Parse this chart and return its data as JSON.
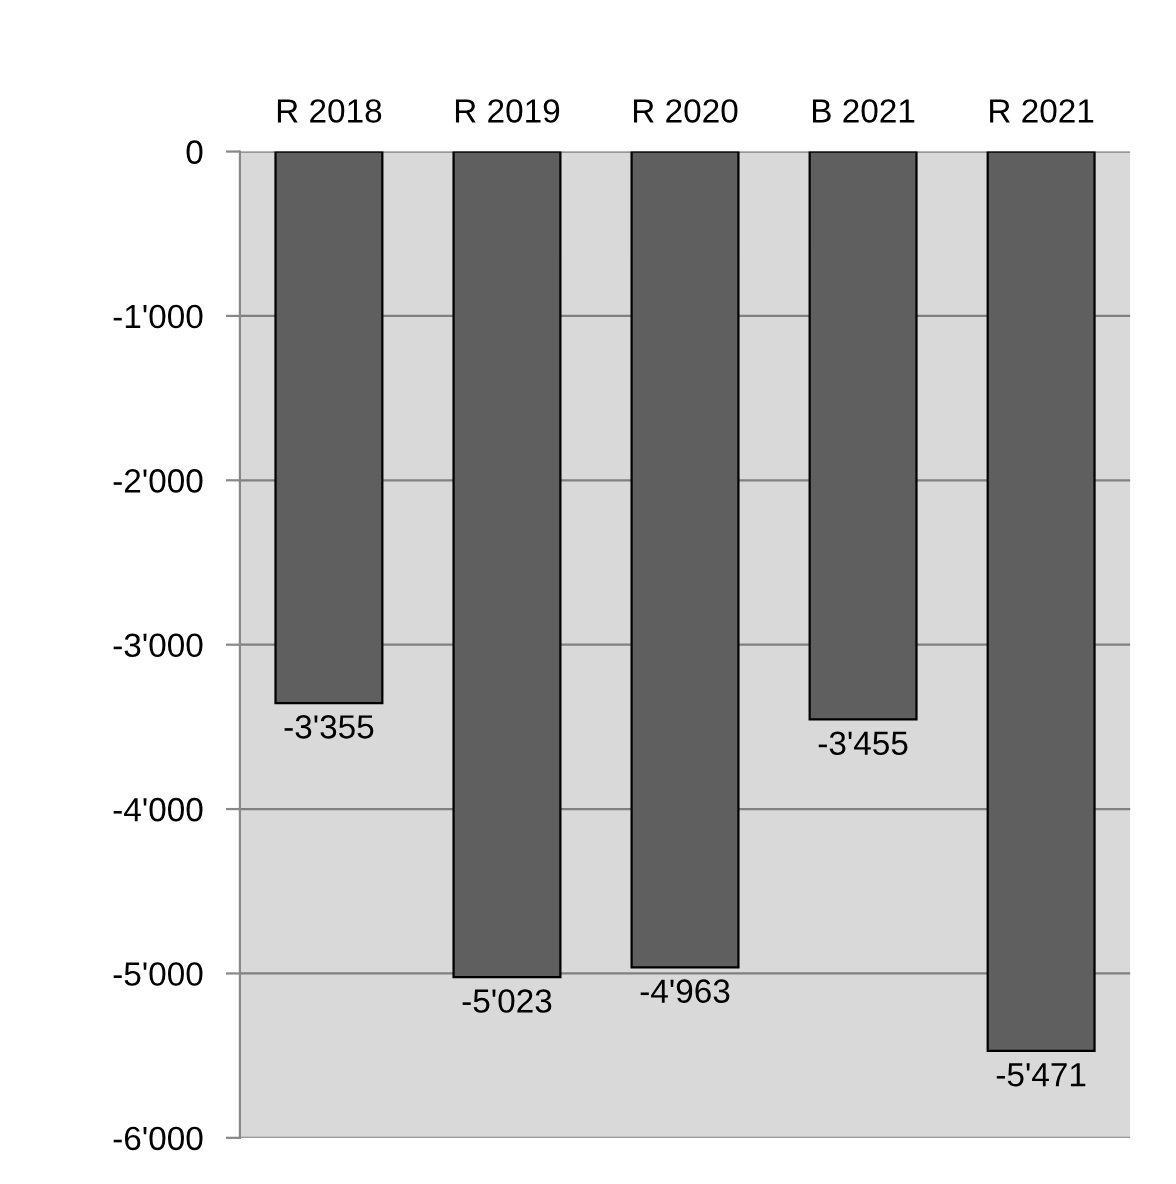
{
  "chart_data": {
    "type": "bar",
    "categories": [
      "R 2018",
      "R 2019",
      "R 2020",
      "B 2021",
      "R 2021"
    ],
    "values": [
      -3355,
      -5023,
      -4963,
      -3455,
      -5471
    ],
    "value_labels": [
      "-3'355",
      "-5'023",
      "-4'963",
      "-3'455",
      "-5'471"
    ],
    "color": "#5f5f5f",
    "ylim": [
      -6000,
      0
    ],
    "yticks": [
      {
        "value": 0,
        "label": "0"
      },
      {
        "value": -1000,
        "label": "-1'000"
      },
      {
        "value": -2000,
        "label": "-2'000"
      },
      {
        "value": -3000,
        "label": "-3'000"
      },
      {
        "value": -4000,
        "label": "-4'000"
      },
      {
        "value": -5000,
        "label": "-5'000"
      },
      {
        "value": -6000,
        "label": "-6'000"
      }
    ],
    "grid": "y"
  }
}
